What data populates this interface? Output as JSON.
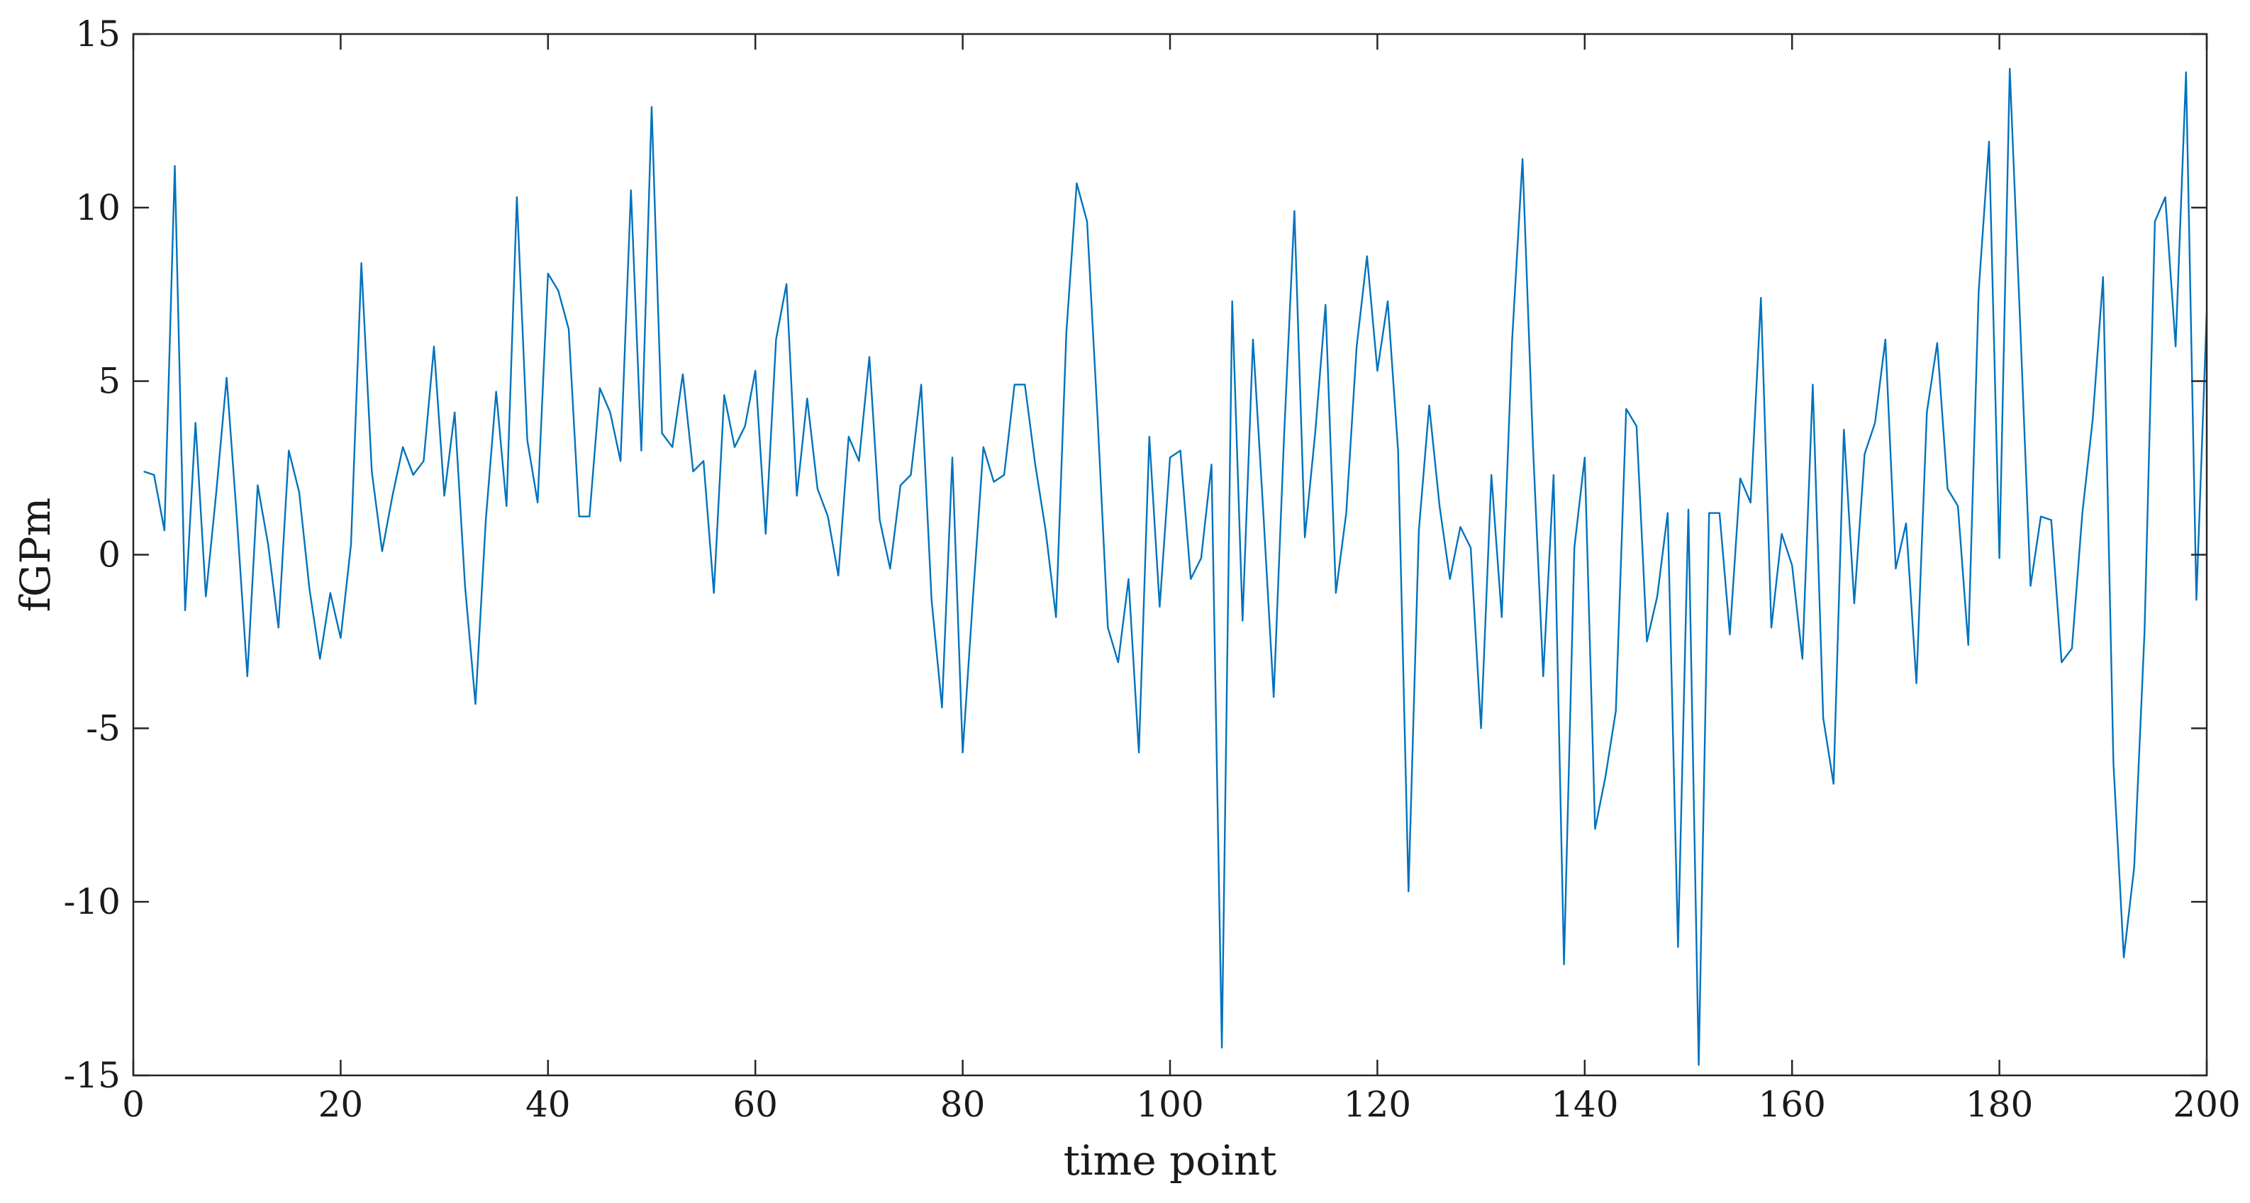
{
  "chart_data": {
    "type": "line",
    "xlabel": "time point",
    "ylabel": "fGPm",
    "xlim": [
      0,
      200
    ],
    "ylim": [
      -15,
      15
    ],
    "xticks": [
      0,
      20,
      40,
      60,
      80,
      100,
      120,
      140,
      160,
      180,
      200
    ],
    "yticks": [
      -15,
      -10,
      -5,
      0,
      5,
      10,
      15
    ],
    "grid": false,
    "line_color": "#0072BD",
    "axis_color": "#262626",
    "series": [
      {
        "x": [
          1,
          2,
          3,
          4,
          5,
          6,
          7,
          8,
          9,
          10,
          11,
          12,
          13,
          14,
          15,
          16,
          17,
          18,
          19,
          20,
          21,
          22,
          23,
          24,
          25,
          26,
          27,
          28,
          29,
          30,
          31,
          32,
          33,
          34,
          35,
          36,
          37,
          38,
          39,
          40,
          41,
          42,
          43,
          44,
          45,
          46,
          47,
          48,
          49,
          50,
          51,
          52,
          53,
          54,
          55,
          56,
          57,
          58,
          59,
          60,
          61,
          62,
          63,
          64,
          65,
          66,
          67,
          68,
          69,
          70,
          71,
          72,
          73,
          74,
          75,
          76,
          77,
          78,
          79,
          80,
          81,
          82,
          83,
          84,
          85,
          86,
          87,
          88,
          89,
          90,
          91,
          92,
          93,
          94,
          95,
          96,
          97,
          98,
          99,
          100,
          101,
          102,
          103,
          104,
          105,
          106,
          107,
          108,
          109,
          110,
          111,
          112,
          113,
          114,
          115,
          116,
          117,
          118,
          119,
          120,
          121,
          122,
          123,
          124,
          125,
          126,
          127,
          128,
          129,
          130,
          131,
          132,
          133,
          134,
          135,
          136,
          137,
          138,
          139,
          140,
          141,
          142,
          143,
          144,
          145,
          146,
          147,
          148,
          149,
          150,
          151,
          152,
          153,
          154,
          155,
          156,
          157,
          158,
          159,
          160,
          161,
          162,
          163,
          164,
          165,
          166,
          167,
          168,
          169,
          170,
          171,
          172,
          173,
          174,
          175,
          176,
          177,
          178,
          179,
          180,
          181,
          182,
          183,
          184,
          185,
          186,
          187,
          188,
          189,
          190,
          191,
          192,
          193,
          194,
          195,
          196,
          197,
          198,
          199,
          200
        ],
        "y": [
          2.4,
          2.3,
          0.7,
          11.2,
          -1.6,
          3.8,
          -1.2,
          1.8,
          5.1,
          1.0,
          -3.5,
          2.0,
          0.3,
          -2.1,
          3.0,
          1.8,
          -1.0,
          -3.0,
          -1.1,
          -2.4,
          0.3,
          8.4,
          2.4,
          0.1,
          1.7,
          3.1,
          2.3,
          2.7,
          6.0,
          1.7,
          4.1,
          -0.9,
          -4.3,
          1.0,
          4.7,
          1.4,
          10.3,
          3.3,
          1.5,
          8.1,
          7.6,
          6.5,
          1.1,
          1.1,
          4.8,
          4.1,
          2.7,
          10.5,
          3.0,
          12.9,
          3.5,
          3.1,
          5.2,
          2.4,
          2.7,
          -1.1,
          4.6,
          3.1,
          3.7,
          5.3,
          0.6,
          6.2,
          7.8,
          1.7,
          4.5,
          1.9,
          1.1,
          -0.6,
          3.4,
          2.7,
          5.7,
          1.0,
          -0.4,
          2.0,
          2.3,
          4.9,
          -1.3,
          -4.4,
          2.8,
          -5.7,
          -1.2,
          3.1,
          2.1,
          2.3,
          4.9,
          4.9,
          2.6,
          0.7,
          -1.8,
          6.4,
          10.7,
          9.6,
          4.0,
          -2.1,
          -3.1,
          -0.7,
          -5.7,
          3.4,
          -1.5,
          2.8,
          3.0,
          -0.7,
          -0.1,
          2.6,
          -14.2,
          7.3,
          -1.9,
          6.2,
          1.2,
          -4.1,
          3.4,
          9.9,
          0.5,
          3.5,
          7.2,
          -1.1,
          1.2,
          6.0,
          8.6,
          5.3,
          7.3,
          3.0,
          -9.7,
          0.7,
          4.3,
          1.4,
          -0.7,
          0.8,
          0.2,
          -5.0,
          2.3,
          -1.8,
          6.2,
          11.4,
          3.2,
          -3.5,
          2.3,
          -11.8,
          0.2,
          2.8,
          -7.9,
          -6.4,
          -4.5,
          4.2,
          3.7,
          -2.5,
          -1.2,
          1.2,
          -11.3,
          1.3,
          -14.7,
          1.2,
          1.2,
          -2.3,
          2.2,
          1.5,
          7.4,
          -2.1,
          0.6,
          -0.3,
          -3.0,
          4.9,
          -4.7,
          -6.6,
          3.6,
          -1.4,
          2.9,
          3.8,
          6.2,
          -0.4,
          0.9,
          -3.7,
          4.1,
          6.1,
          1.9,
          1.4,
          -2.6,
          7.6,
          11.9,
          -0.1,
          14.0,
          6.7,
          -0.9,
          1.1,
          1.0,
          -3.1,
          -2.7,
          1.2,
          3.9,
          8.0,
          -6.0,
          -11.6,
          -9.0,
          -2.2,
          9.6,
          10.3,
          6.0,
          13.9,
          -1.3,
          7.0
        ]
      }
    ]
  }
}
